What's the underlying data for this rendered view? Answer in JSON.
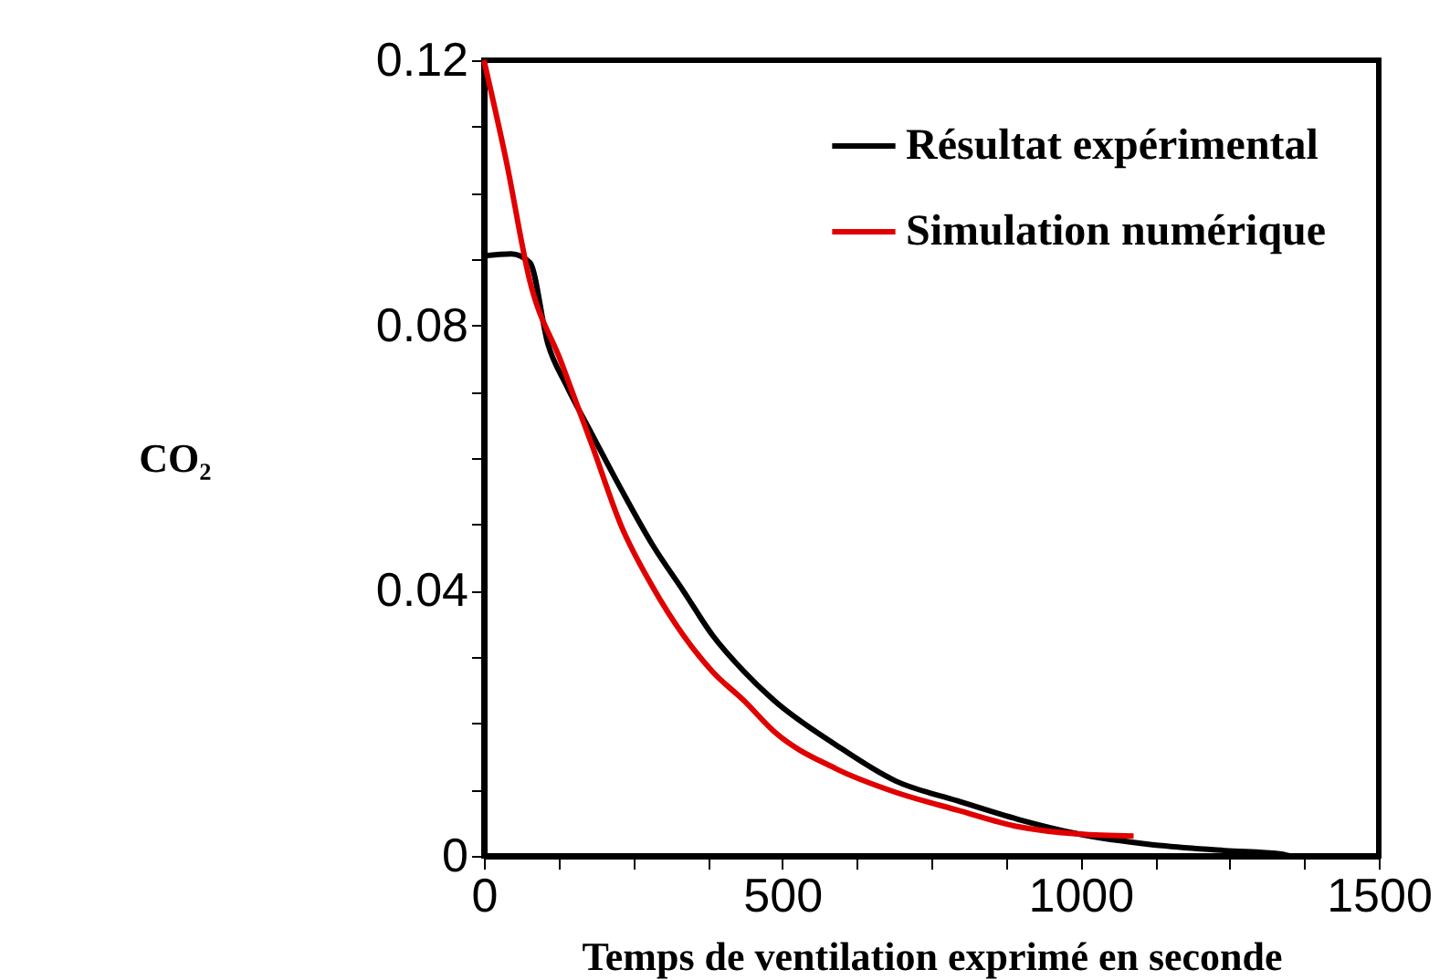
{
  "chart_data": {
    "type": "line",
    "xlabel": "Temps de ventilation exprimé en seconde",
    "ylabel": "CO₂",
    "xlim": [
      0,
      1500
    ],
    "ylim": [
      0,
      0.12
    ],
    "xticks": [
      0,
      {
        "value": 125,
        "label": null
      },
      {
        "value": 250,
        "label": null
      },
      {
        "value": 375,
        "label": null
      },
      500,
      {
        "value": 625,
        "label": null
      },
      {
        "value": 750,
        "label": null
      },
      {
        "value": 875,
        "label": null
      },
      1000,
      {
        "value": 1125,
        "label": null
      },
      {
        "value": 1250,
        "label": null
      },
      {
        "value": 1375,
        "label": null
      },
      1500
    ],
    "yticks": [
      0,
      {
        "value": 0.01,
        "label": null
      },
      {
        "value": 0.02,
        "label": null
      },
      {
        "value": 0.03,
        "label": null
      },
      0.04,
      {
        "value": 0.05,
        "label": null
      },
      {
        "value": 0.06,
        "label": null
      },
      {
        "value": 0.07,
        "label": null
      },
      0.08,
      {
        "value": 0.09,
        "label": null
      },
      {
        "value": 0.1,
        "label": null
      },
      {
        "value": 0.11,
        "label": null
      },
      0.12
    ],
    "grid": false,
    "legend": "top right",
    "marker": "none",
    "line_style": "solid",
    "series": [
      {
        "name": "Résultat expérimental",
        "color": "#000000",
        "x": [
          0,
          46,
          77,
          107,
          138,
          181,
          230,
          282,
          334,
          383,
          436,
          487,
          589,
          690,
          794,
          896,
          997,
          1120,
          1242,
          1334,
          1350
        ],
        "values": [
          0.0905,
          0.0908,
          0.0895,
          0.0773,
          0.071,
          0.0636,
          0.0553,
          0.047,
          0.04,
          0.0333,
          0.0278,
          0.0234,
          0.0168,
          0.0113,
          0.0083,
          0.0055,
          0.0033,
          0.0017,
          0.0008,
          0.0003,
          0
        ]
      },
      {
        "name": "Simulation numérique",
        "color": "#e00000",
        "x": [
          0,
          37,
          77,
          129,
          181,
          230,
          282,
          334,
          383,
          436,
          487,
          589,
          690,
          794,
          896,
          997,
          1089
        ],
        "values": [
          0.12,
          0.105,
          0.0867,
          0.0746,
          0.062,
          0.0498,
          0.0407,
          0.0333,
          0.0278,
          0.0234,
          0.0187,
          0.0132,
          0.0096,
          0.0069,
          0.0044,
          0.0033,
          0.003
        ]
      }
    ]
  }
}
